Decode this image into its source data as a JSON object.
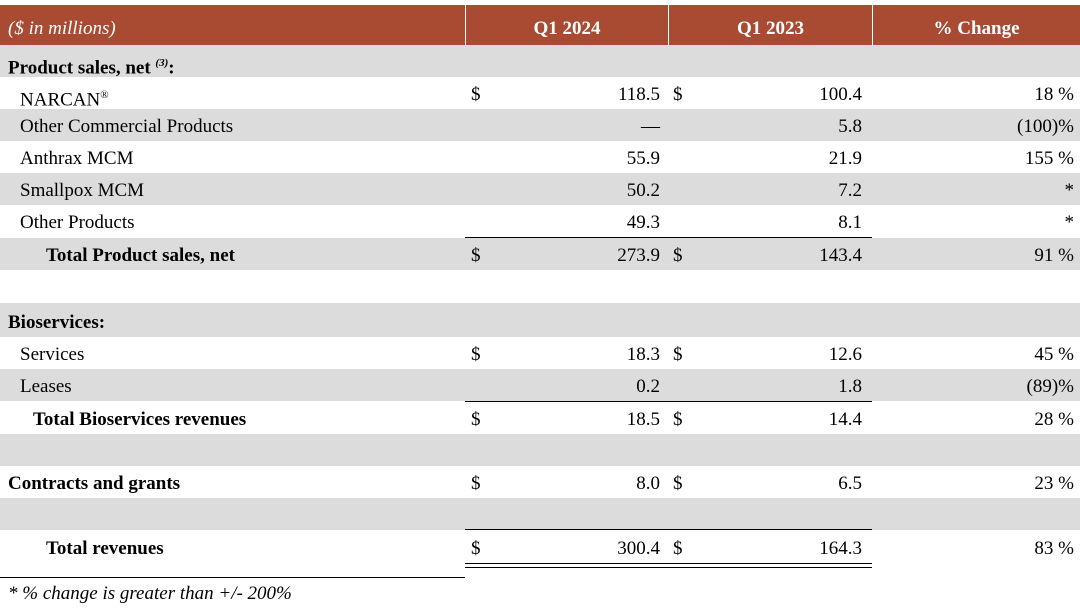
{
  "header": {
    "label": "($ in millions)",
    "col1": "Q1 2024",
    "col2": "Q1 2023",
    "col3": "% Change"
  },
  "sections": {
    "product_sales": {
      "title": "Product sales, net",
      "title_sup": "(3)",
      "title_suffix": ":",
      "rows": [
        {
          "label": "NARCAN",
          "label_sup": "®",
          "dollar1": "$",
          "q1_2024": "118.5",
          "dollar2": "$",
          "q1_2023": "100.4",
          "change": "18 %"
        },
        {
          "label": "Other Commercial Products",
          "dollar1": "",
          "q1_2024": "—",
          "dollar2": "",
          "q1_2023": "5.8",
          "change": "(100)%"
        },
        {
          "label": "Anthrax MCM",
          "dollar1": "",
          "q1_2024": "55.9",
          "dollar2": "",
          "q1_2023": "21.9",
          "change": "155 %"
        },
        {
          "label": "Smallpox MCM",
          "dollar1": "",
          "q1_2024": "50.2",
          "dollar2": "",
          "q1_2023": "7.2",
          "change": "*"
        },
        {
          "label": "Other Products",
          "dollar1": "",
          "q1_2024": "49.3",
          "dollar2": "",
          "q1_2023": "8.1",
          "change": "*"
        }
      ],
      "total": {
        "label": "Total Product sales, net",
        "dollar1": "$",
        "q1_2024": "273.9",
        "dollar2": "$",
        "q1_2023": "143.4",
        "change": "91 %"
      }
    },
    "bioservices": {
      "title": "Bioservices:",
      "rows": [
        {
          "label": "Services",
          "dollar1": "$",
          "q1_2024": "18.3",
          "dollar2": "$",
          "q1_2023": "12.6",
          "change": "45 %"
        },
        {
          "label": "Leases",
          "dollar1": "",
          "q1_2024": "0.2",
          "dollar2": "",
          "q1_2023": "1.8",
          "change": "(89)%"
        }
      ],
      "total": {
        "label": "Total Bioservices revenues",
        "dollar1": "$",
        "q1_2024": "18.5",
        "dollar2": "$",
        "q1_2023": "14.4",
        "change": "28 %"
      }
    },
    "contracts": {
      "label": "Contracts and grants",
      "dollar1": "$",
      "q1_2024": "8.0",
      "dollar2": "$",
      "q1_2023": "6.5",
      "change": "23 %"
    },
    "total_revenues": {
      "label": "Total revenues",
      "dollar1": "$",
      "q1_2024": "300.4",
      "dollar2": "$",
      "q1_2023": "164.3",
      "change": "83 %"
    }
  },
  "footnote": "* % change is greater than +/- 200%",
  "colors": {
    "header_bg": "#a84b32",
    "shade": "#dcdcdc"
  }
}
